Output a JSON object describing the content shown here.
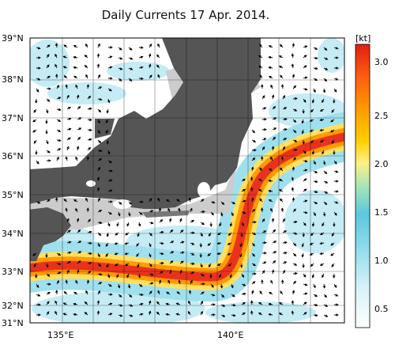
{
  "title": "Daily Currents 17 Apr. 2014.",
  "lat_labels": [
    "39°N",
    "38°N",
    "37°N",
    "36°N",
    "35°N",
    "34°N",
    "33°N",
    "32°N",
    "31°N"
  ],
  "lon_labels": [
    "135°E",
    "140°E"
  ],
  "colorbar": {
    "unit": "[kt]",
    "ticks": [
      "3.0",
      "2.5",
      "2.0",
      "1.5",
      "1.0",
      "0.5"
    ]
  },
  "colors": {
    "land": "#555555",
    "shelf": "#cccccc",
    "strong": "#e8321e",
    "medium": "#ffb000",
    "weak": "#6fd0e6"
  }
}
